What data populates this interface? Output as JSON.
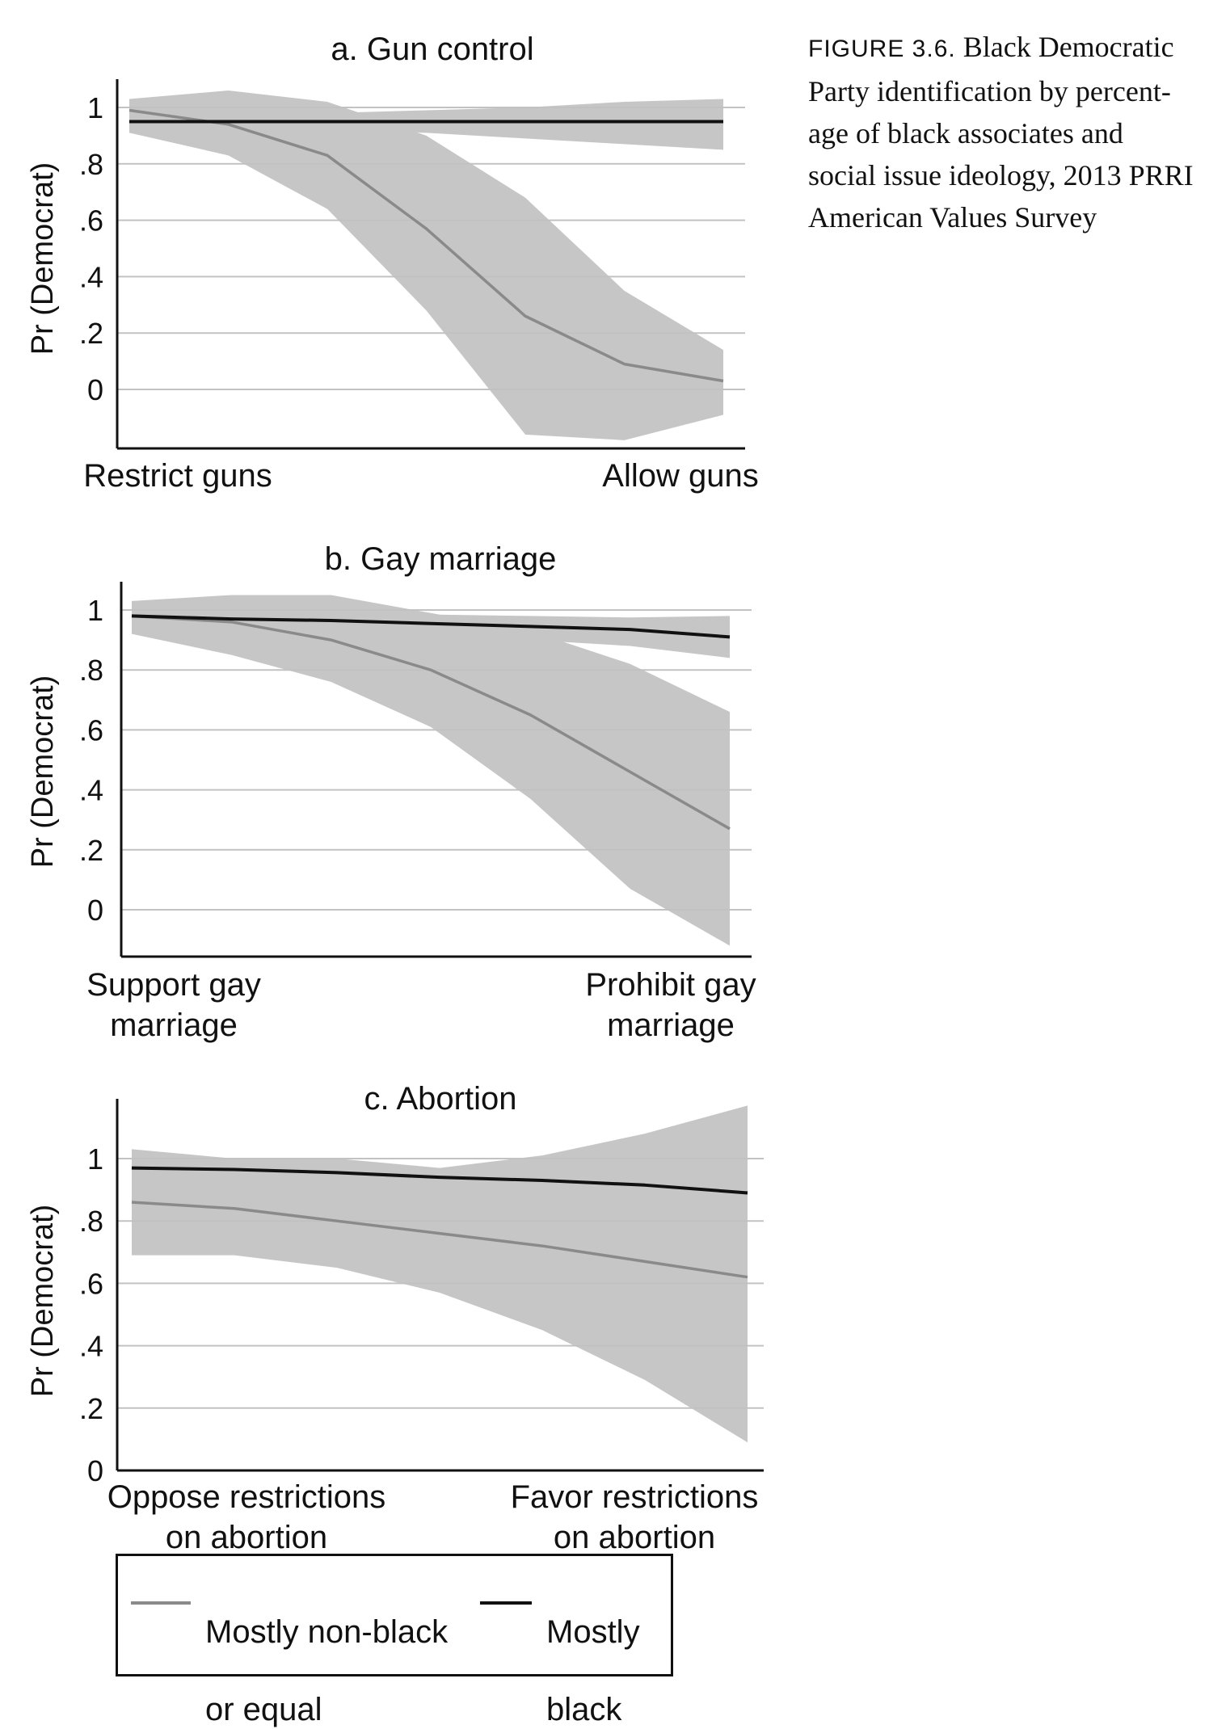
{
  "caption": {
    "figure_label": "FIGURE 3.6.",
    "text_lines": [
      "Black Democratic",
      "Party identification by percent-",
      "age of black associates and",
      "social issue ideology, 2013 PRRI",
      "American Values Survey"
    ]
  },
  "legend": {
    "items": [
      {
        "label_lines": [
          "Mostly non-black",
          "or equal"
        ],
        "color": "#8a8a8a"
      },
      {
        "label_lines": [
          "Mostly",
          "black"
        ],
        "color": "#111111"
      }
    ]
  },
  "colors": {
    "band": "#c6c6c6",
    "non_black": "#8a8a8a",
    "black": "#111111",
    "grid": "#c8c8c8"
  },
  "chart_data": [
    {
      "type": "line",
      "title": "a. Gun control",
      "ylabel": "Pr (Democrat)",
      "yticks": [
        "0",
        ".2",
        ".4",
        ".6",
        ".8",
        "1"
      ],
      "ylim": [
        -0.22,
        1.1
      ],
      "x": [
        0,
        1,
        2,
        3,
        4,
        5,
        6
      ],
      "x_end_labels": [
        [
          "Restrict guns"
        ],
        [
          "Allow guns"
        ]
      ],
      "series": [
        {
          "name": "Mostly non-black or equal",
          "values": [
            0.99,
            0.94,
            0.83,
            0.57,
            0.26,
            0.09,
            0.03
          ],
          "lower": [
            0.91,
            0.83,
            0.64,
            0.28,
            -0.16,
            -0.18,
            -0.09
          ],
          "upper": [
            1.03,
            1.06,
            1.02,
            0.9,
            0.68,
            0.35,
            0.14
          ]
        },
        {
          "name": "Mostly black",
          "values": [
            0.95,
            0.95,
            0.95,
            0.95,
            0.95,
            0.95,
            0.95
          ],
          "lower": [
            0.92,
            0.93,
            0.92,
            0.91,
            0.89,
            0.87,
            0.85
          ],
          "upper": [
            0.98,
            0.97,
            0.98,
            0.99,
            1.0,
            1.02,
            1.03
          ]
        }
      ]
    },
    {
      "type": "line",
      "title": "b. Gay marriage",
      "ylabel": "Pr (Democrat)",
      "yticks": [
        "0",
        ".2",
        ".4",
        ".6",
        ".8",
        "1"
      ],
      "ylim": [
        -0.16,
        1.08
      ],
      "x": [
        0,
        1,
        2,
        3,
        4,
        5,
        6
      ],
      "x_end_labels": [
        [
          "Support gay",
          "marriage"
        ],
        [
          "Prohibit gay",
          "marriage"
        ]
      ],
      "series": [
        {
          "name": "Mostly non-black or equal",
          "values": [
            0.98,
            0.96,
            0.9,
            0.8,
            0.65,
            0.46,
            0.27
          ],
          "lower": [
            0.92,
            0.85,
            0.76,
            0.61,
            0.37,
            0.07,
            -0.12
          ],
          "upper": [
            1.03,
            1.05,
            1.05,
            0.99,
            0.93,
            0.82,
            0.66
          ]
        },
        {
          "name": "Mostly black",
          "values": [
            0.98,
            0.97,
            0.965,
            0.955,
            0.945,
            0.935,
            0.91
          ],
          "lower": [
            0.96,
            0.95,
            0.94,
            0.92,
            0.9,
            0.88,
            0.84
          ],
          "upper": [
            1.0,
            0.99,
            0.99,
            0.985,
            0.98,
            0.975,
            0.98
          ]
        }
      ]
    },
    {
      "type": "line",
      "title": "c. Abortion",
      "ylabel": "Pr (Democrat)",
      "yticks": [
        "0",
        ".2",
        ".4",
        ".6",
        ".8",
        "1"
      ],
      "ylim": [
        0,
        1.18
      ],
      "x": [
        0,
        1,
        2,
        3,
        4,
        5,
        6
      ],
      "x_end_labels": [
        [
          "Oppose restrictions",
          "on abortion"
        ],
        [
          "Favor restrictions",
          "on abortion"
        ]
      ],
      "series": [
        {
          "name": "Mostly non-black or equal",
          "values": [
            0.86,
            0.84,
            0.8,
            0.76,
            0.72,
            0.67,
            0.62
          ],
          "lower": [
            0.69,
            0.69,
            0.65,
            0.57,
            0.45,
            0.29,
            0.09
          ],
          "upper": [
            1.03,
            1.0,
            1.0,
            0.97,
            1.01,
            1.08,
            1.17
          ]
        },
        {
          "name": "Mostly black",
          "values": [
            0.97,
            0.965,
            0.955,
            0.94,
            0.93,
            0.915,
            0.89
          ],
          "lower": [
            0.95,
            0.94,
            0.93,
            0.91,
            0.89,
            0.87,
            0.84
          ],
          "upper": [
            0.99,
            0.985,
            0.98,
            0.97,
            0.97,
            0.96,
            0.94
          ]
        }
      ]
    }
  ]
}
